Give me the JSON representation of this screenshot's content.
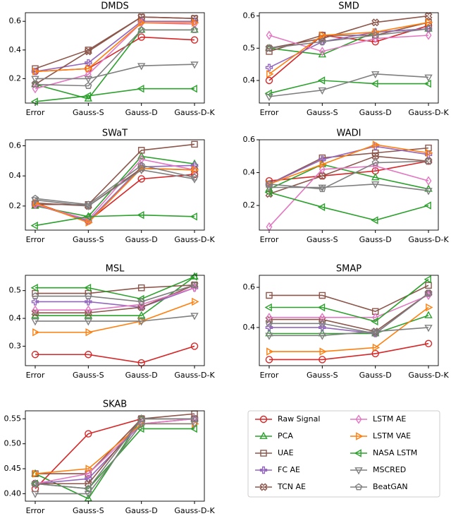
{
  "chart_data": [
    {
      "type": "line",
      "title": "DMDS",
      "categories": [
        "Error",
        "Gauss-S",
        "Gauss-D",
        "Gauss-D-K"
      ],
      "ylim": [
        0.03,
        0.66
      ],
      "yticks": [
        0.2,
        0.4,
        0.6
      ],
      "series": [
        {
          "name": "Raw Signal",
          "color": "#d62728",
          "marker": "circle",
          "values": [
            0.25,
            0.27,
            0.49,
            0.47
          ]
        },
        {
          "name": "PCA",
          "color": "#2ca02c",
          "marker": "triangle-up",
          "values": [
            0.16,
            0.06,
            0.54,
            0.54
          ]
        },
        {
          "name": "UAE",
          "color": "#8c564b",
          "marker": "square",
          "values": [
            0.27,
            0.4,
            0.63,
            0.62
          ]
        },
        {
          "name": "FC AE",
          "color": "#9467bd",
          "marker": "plus",
          "values": [
            0.25,
            0.31,
            0.6,
            0.6
          ]
        },
        {
          "name": "TCN AE",
          "color": "#8c564b",
          "marker": "x",
          "values": [
            0.16,
            0.39,
            0.63,
            0.62
          ]
        },
        {
          "name": "LSTM AE",
          "color": "#e377c2",
          "marker": "diamond",
          "values": [
            0.13,
            0.23,
            0.59,
            0.58
          ]
        },
        {
          "name": "LSTM VAE",
          "color": "#ff7f0e",
          "marker": "triangle-right",
          "values": [
            0.25,
            0.27,
            0.59,
            0.59
          ]
        },
        {
          "name": "NASA LSTM",
          "color": "#2ca02c",
          "marker": "triangle-left",
          "values": [
            0.04,
            0.08,
            0.13,
            0.13
          ]
        },
        {
          "name": "MSCRED",
          "color": "#7f7f7f",
          "marker": "triangle-down",
          "values": [
            0.2,
            0.2,
            0.29,
            0.3
          ]
        },
        {
          "name": "BeatGAN",
          "color": "#7f7f7f",
          "marker": "pentagon",
          "values": [
            0.16,
            0.15,
            0.54,
            0.54
          ]
        }
      ]
    },
    {
      "type": "line",
      "title": "SMD",
      "categories": [
        "Error",
        "Gauss-S",
        "Gauss-D",
        "Gauss-D-K"
      ],
      "ylim": [
        0.33,
        0.61
      ],
      "yticks": [
        0.4,
        0.5,
        0.6
      ],
      "series": [
        {
          "name": "Raw Signal",
          "color": "#d62728",
          "marker": "circle",
          "values": [
            0.4,
            0.54,
            0.52,
            0.57
          ]
        },
        {
          "name": "PCA",
          "color": "#2ca02c",
          "marker": "triangle-up",
          "values": [
            0.5,
            0.48,
            0.55,
            0.56
          ]
        },
        {
          "name": "UAE",
          "color": "#8c564b",
          "marker": "square",
          "values": [
            0.49,
            0.54,
            0.54,
            0.58
          ]
        },
        {
          "name": "FC AE",
          "color": "#9467bd",
          "marker": "plus",
          "values": [
            0.44,
            0.52,
            0.55,
            0.56
          ]
        },
        {
          "name": "TCN AE",
          "color": "#8c564b",
          "marker": "x",
          "values": [
            0.5,
            0.53,
            0.58,
            0.6
          ]
        },
        {
          "name": "LSTM AE",
          "color": "#e377c2",
          "marker": "diamond",
          "values": [
            0.54,
            0.49,
            0.53,
            0.54
          ]
        },
        {
          "name": "LSTM VAE",
          "color": "#ff7f0e",
          "marker": "triangle-right",
          "values": [
            0.42,
            0.54,
            0.55,
            0.58
          ]
        },
        {
          "name": "NASA LSTM",
          "color": "#2ca02c",
          "marker": "triangle-left",
          "values": [
            0.36,
            0.4,
            0.39,
            0.39
          ]
        },
        {
          "name": "MSCRED",
          "color": "#7f7f7f",
          "marker": "triangle-down",
          "values": [
            0.35,
            0.37,
            0.42,
            0.41
          ]
        },
        {
          "name": "BeatGAN",
          "color": "#7f7f7f",
          "marker": "pentagon",
          "values": [
            0.5,
            0.52,
            0.54,
            0.56
          ]
        }
      ]
    },
    {
      "type": "line",
      "title": "SWaT",
      "categories": [
        "Error",
        "Gauss-S",
        "Gauss-D",
        "Gauss-D-K"
      ],
      "ylim": [
        0.04,
        0.64
      ],
      "yticks": [
        0.2,
        0.4,
        0.6
      ],
      "series": [
        {
          "name": "Raw Signal",
          "color": "#d62728",
          "marker": "circle",
          "values": [
            0.22,
            0.1,
            0.38,
            0.41
          ]
        },
        {
          "name": "PCA",
          "color": "#2ca02c",
          "marker": "triangle-up",
          "values": [
            0.2,
            0.13,
            0.53,
            0.48
          ]
        },
        {
          "name": "UAE",
          "color": "#8c564b",
          "marker": "square",
          "values": [
            0.21,
            0.21,
            0.57,
            0.61
          ]
        },
        {
          "name": "FC AE",
          "color": "#9467bd",
          "marker": "plus",
          "values": [
            0.21,
            0.1,
            0.46,
            0.47
          ]
        },
        {
          "name": "TCN AE",
          "color": "#8c564b",
          "marker": "x",
          "values": [
            0.22,
            0.2,
            0.45,
            0.44
          ]
        },
        {
          "name": "LSTM AE",
          "color": "#e377c2",
          "marker": "diamond",
          "values": [
            0.21,
            0.11,
            0.51,
            0.44
          ]
        },
        {
          "name": "LSTM VAE",
          "color": "#ff7f0e",
          "marker": "triangle-right",
          "values": [
            0.22,
            0.09,
            0.45,
            0.44
          ]
        },
        {
          "name": "NASA LSTM",
          "color": "#2ca02c",
          "marker": "triangle-left",
          "values": [
            0.07,
            0.13,
            0.14,
            0.13
          ]
        },
        {
          "name": "MSCRED",
          "color": "#7f7f7f",
          "marker": "triangle-down",
          "values": [
            0.24,
            0.2,
            0.44,
            0.38
          ]
        },
        {
          "name": "BeatGAN",
          "color": "#7f7f7f",
          "marker": "pentagon",
          "values": [
            0.25,
            0.21,
            0.47,
            0.39
          ]
        }
      ]
    },
    {
      "type": "line",
      "title": "WADI",
      "categories": [
        "Error",
        "Gauss-S",
        "Gauss-D",
        "Gauss-D-K"
      ],
      "ylim": [
        0.05,
        0.6
      ],
      "yticks": [
        0.2,
        0.4,
        0.6
      ],
      "series": [
        {
          "name": "Raw Signal",
          "color": "#d62728",
          "marker": "circle",
          "values": [
            0.35,
            0.38,
            0.41,
            0.47
          ]
        },
        {
          "name": "PCA",
          "color": "#2ca02c",
          "marker": "triangle-up",
          "values": [
            0.3,
            0.45,
            0.37,
            0.3
          ]
        },
        {
          "name": "UAE",
          "color": "#8c564b",
          "marker": "square",
          "values": [
            0.33,
            0.49,
            0.52,
            0.55
          ]
        },
        {
          "name": "FC AE",
          "color": "#9467bd",
          "marker": "plus",
          "values": [
            0.33,
            0.48,
            0.56,
            0.51
          ]
        },
        {
          "name": "TCN AE",
          "color": "#8c564b",
          "marker": "x",
          "values": [
            0.27,
            0.38,
            0.5,
            0.47
          ]
        },
        {
          "name": "LSTM AE",
          "color": "#e377c2",
          "marker": "diamond",
          "values": [
            0.07,
            0.42,
            0.44,
            0.35
          ]
        },
        {
          "name": "LSTM VAE",
          "color": "#ff7f0e",
          "marker": "triangle-right",
          "values": [
            0.33,
            0.45,
            0.57,
            0.52
          ]
        },
        {
          "name": "NASA LSTM",
          "color": "#2ca02c",
          "marker": "triangle-left",
          "values": [
            0.28,
            0.19,
            0.11,
            0.2
          ]
        },
        {
          "name": "MSCRED",
          "color": "#7f7f7f",
          "marker": "triangle-down",
          "values": [
            0.31,
            0.31,
            0.33,
            0.29
          ]
        },
        {
          "name": "BeatGAN",
          "color": "#7f7f7f",
          "marker": "pentagon",
          "values": [
            0.33,
            0.3,
            0.46,
            0.47
          ]
        }
      ]
    },
    {
      "type": "line",
      "title": "MSL",
      "categories": [
        "Error",
        "Gauss-S",
        "Gauss-D",
        "Gauss-D-K"
      ],
      "ylim": [
        0.23,
        0.555
      ],
      "yticks": [
        0.3,
        0.4,
        0.5
      ],
      "series": [
        {
          "name": "Raw Signal",
          "color": "#d62728",
          "marker": "circle",
          "values": [
            0.27,
            0.27,
            0.24,
            0.3
          ]
        },
        {
          "name": "PCA",
          "color": "#2ca02c",
          "marker": "triangle-up",
          "values": [
            0.41,
            0.41,
            0.41,
            0.55
          ]
        },
        {
          "name": "UAE",
          "color": "#8c564b",
          "marker": "square",
          "values": [
            0.49,
            0.49,
            0.51,
            0.52
          ]
        },
        {
          "name": "FC AE",
          "color": "#9467bd",
          "marker": "plus",
          "values": [
            0.46,
            0.46,
            0.44,
            0.51
          ]
        },
        {
          "name": "TCN AE",
          "color": "#8c564b",
          "marker": "x",
          "values": [
            0.42,
            0.42,
            0.44,
            0.52
          ]
        },
        {
          "name": "LSTM AE",
          "color": "#e377c2",
          "marker": "diamond",
          "values": [
            0.43,
            0.43,
            0.45,
            0.51
          ]
        },
        {
          "name": "LSTM VAE",
          "color": "#ff7f0e",
          "marker": "triangle-right",
          "values": [
            0.35,
            0.35,
            0.39,
            0.46
          ]
        },
        {
          "name": "NASA LSTM",
          "color": "#2ca02c",
          "marker": "triangle-left",
          "values": [
            0.51,
            0.51,
            0.47,
            0.55
          ]
        },
        {
          "name": "MSCRED",
          "color": "#7f7f7f",
          "marker": "triangle-down",
          "values": [
            0.39,
            0.39,
            0.39,
            0.41
          ]
        },
        {
          "name": "BeatGAN",
          "color": "#7f7f7f",
          "marker": "pentagon",
          "values": [
            0.48,
            0.48,
            0.46,
            0.52
          ]
        }
      ]
    },
    {
      "type": "line",
      "title": "SMAP",
      "categories": [
        "Error",
        "Gauss-S",
        "Gauss-D",
        "Gauss-D-K"
      ],
      "ylim": [
        0.21,
        0.66
      ],
      "yticks": [
        0.4,
        0.6
      ],
      "series": [
        {
          "name": "Raw Signal",
          "color": "#d62728",
          "marker": "circle",
          "values": [
            0.24,
            0.24,
            0.27,
            0.32
          ]
        },
        {
          "name": "PCA",
          "color": "#2ca02c",
          "marker": "triangle-up",
          "values": [
            0.37,
            0.37,
            0.37,
            0.46
          ]
        },
        {
          "name": "UAE",
          "color": "#8c564b",
          "marker": "square",
          "values": [
            0.56,
            0.56,
            0.48,
            0.61
          ]
        },
        {
          "name": "FC AE",
          "color": "#9467bd",
          "marker": "plus",
          "values": [
            0.4,
            0.4,
            0.37,
            0.57
          ]
        },
        {
          "name": "TCN AE",
          "color": "#8c564b",
          "marker": "x",
          "values": [
            0.44,
            0.44,
            0.38,
            0.57
          ]
        },
        {
          "name": "LSTM AE",
          "color": "#e377c2",
          "marker": "diamond",
          "values": [
            0.45,
            0.45,
            0.45,
            0.56
          ]
        },
        {
          "name": "LSTM VAE",
          "color": "#ff7f0e",
          "marker": "triangle-right",
          "values": [
            0.28,
            0.28,
            0.3,
            0.5
          ]
        },
        {
          "name": "NASA LSTM",
          "color": "#2ca02c",
          "marker": "triangle-left",
          "values": [
            0.5,
            0.5,
            0.43,
            0.64
          ]
        },
        {
          "name": "MSCRED",
          "color": "#7f7f7f",
          "marker": "triangle-down",
          "values": [
            0.36,
            0.36,
            0.38,
            0.4
          ]
        },
        {
          "name": "BeatGAN",
          "color": "#7f7f7f",
          "marker": "pentagon",
          "values": [
            0.42,
            0.42,
            0.37,
            0.57
          ]
        }
      ]
    },
    {
      "type": "line",
      "title": "SKAB",
      "categories": [
        "Error",
        "Gauss-S",
        "Gauss-D",
        "Gauss-D-K"
      ],
      "ylim": [
        0.385,
        0.566
      ],
      "yticks": [
        {
          "value": 0.4,
          "label": "0.40"
        },
        0.45,
        {
          "value": 0.5,
          "label": "0.50"
        },
        0.55
      ],
      "series": [
        {
          "name": "Raw Signal",
          "color": "#d62728",
          "marker": "circle",
          "values": [
            0.41,
            0.52,
            0.55,
            0.55
          ]
        },
        {
          "name": "PCA",
          "color": "#2ca02c",
          "marker": "triangle-up",
          "values": [
            0.44,
            0.39,
            0.55,
            0.55
          ]
        },
        {
          "name": "UAE",
          "color": "#8c564b",
          "marker": "square",
          "values": [
            0.44,
            0.44,
            0.55,
            0.56
          ]
        },
        {
          "name": "FC AE",
          "color": "#9467bd",
          "marker": "plus",
          "values": [
            0.42,
            0.43,
            0.54,
            0.55
          ]
        },
        {
          "name": "TCN AE",
          "color": "#8c564b",
          "marker": "x",
          "values": [
            0.42,
            0.42,
            0.55,
            0.55
          ]
        },
        {
          "name": "LSTM AE",
          "color": "#e377c2",
          "marker": "diamond",
          "values": [
            0.42,
            0.44,
            0.54,
            0.55
          ]
        },
        {
          "name": "LSTM VAE",
          "color": "#ff7f0e",
          "marker": "triangle-right",
          "values": [
            0.44,
            0.45,
            0.54,
            0.54
          ]
        },
        {
          "name": "NASA LSTM",
          "color": "#2ca02c",
          "marker": "triangle-left",
          "values": [
            0.42,
            0.41,
            0.53,
            0.53
          ]
        },
        {
          "name": "MSCRED",
          "color": "#7f7f7f",
          "marker": "triangle-down",
          "values": [
            0.4,
            0.4,
            0.54,
            0.54
          ]
        },
        {
          "name": "BeatGAN",
          "color": "#7f7f7f",
          "marker": "pentagon",
          "values": [
            0.42,
            0.41,
            0.55,
            0.55
          ]
        }
      ]
    }
  ]
}
